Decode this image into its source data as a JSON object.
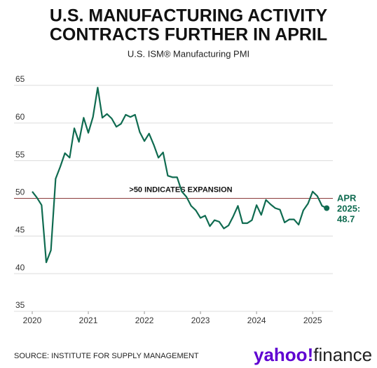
{
  "chart_data": {
    "type": "line",
    "title": [
      "U.S. MANUFACTURING ACTIVITY",
      "CONTRACTS FURTHER IN APRIL"
    ],
    "subtitle": "U.S. ISM® Manufacturing PMI",
    "source": "SOURCE: INSTITUTE FOR SUPPLY MANAGEMENT",
    "logo": [
      "yahoo!",
      "finance"
    ],
    "x": [
      2020.0,
      2020.083,
      2020.167,
      2020.25,
      2020.333,
      2020.417,
      2020.5,
      2020.583,
      2020.667,
      2020.75,
      2020.833,
      2020.917,
      2021.0,
      2021.083,
      2021.167,
      2021.25,
      2021.333,
      2021.417,
      2021.5,
      2021.583,
      2021.667,
      2021.75,
      2021.833,
      2021.917,
      2022.0,
      2022.083,
      2022.167,
      2022.25,
      2022.333,
      2022.417,
      2022.5,
      2022.583,
      2022.667,
      2022.75,
      2022.833,
      2022.917,
      2023.0,
      2023.083,
      2023.167,
      2023.25,
      2023.333,
      2023.417,
      2023.5,
      2023.583,
      2023.667,
      2023.75,
      2023.833,
      2023.917,
      2024.0,
      2024.083,
      2024.167,
      2024.25,
      2024.333,
      2024.417,
      2024.5,
      2024.583,
      2024.667,
      2024.75,
      2024.833,
      2024.917,
      2025.0,
      2025.083,
      2025.167,
      2025.25
    ],
    "series": [
      {
        "name": "U.S. ISM Manufacturing PMI",
        "color": "#0f6b50",
        "values": [
          50.9,
          50.1,
          49.1,
          41.5,
          43.1,
          52.6,
          54.2,
          56.0,
          55.4,
          59.3,
          57.5,
          60.7,
          58.7,
          60.8,
          64.7,
          60.7,
          61.2,
          60.6,
          59.5,
          59.9,
          61.1,
          60.8,
          61.1,
          58.8,
          57.6,
          58.6,
          57.1,
          55.4,
          56.1,
          53.0,
          52.8,
          52.8,
          50.9,
          50.2,
          49.0,
          48.4,
          47.4,
          47.7,
          46.3,
          47.1,
          46.9,
          46.0,
          46.4,
          47.6,
          49.0,
          46.7,
          46.7,
          47.1,
          49.1,
          47.8,
          49.8,
          49.2,
          48.7,
          48.5,
          46.8,
          47.2,
          47.2,
          46.5,
          48.4,
          49.3,
          50.9,
          50.3,
          49.0,
          48.7
        ]
      }
    ],
    "xlim": [
      2020,
      2025.36
    ],
    "xticks": [
      2020,
      2021,
      2022,
      2023,
      2024,
      2025
    ],
    "ylim": [
      35,
      65
    ],
    "yticks": [
      35,
      40,
      45,
      50,
      55,
      60,
      65
    ],
    "grid": true,
    "reference_line": {
      "value": 50,
      "label": ">50 INDICATES EXPANSION",
      "color": "#8b3a3a"
    },
    "end_label": [
      "APR",
      "2025:",
      "48.7"
    ]
  }
}
